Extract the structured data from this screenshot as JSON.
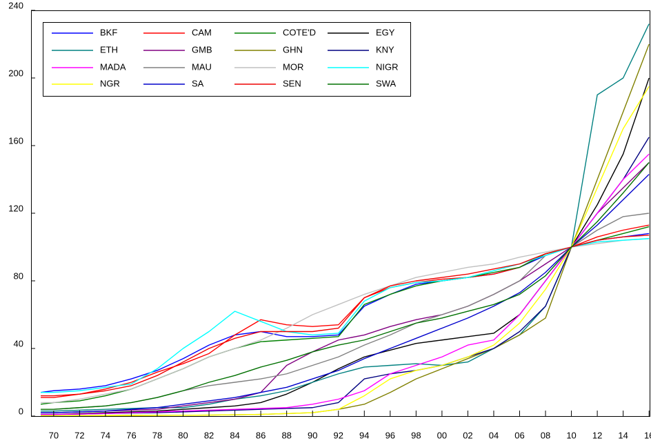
{
  "chart_data": {
    "type": "line",
    "x": [
      1969,
      1970,
      1972,
      1974,
      1976,
      1978,
      1980,
      1982,
      1984,
      1986,
      1988,
      1990,
      1992,
      1994,
      1996,
      1998,
      2000,
      2002,
      2004,
      2006,
      2008,
      2010,
      2012,
      2014,
      2016
    ],
    "xlim": [
      1968.25,
      2016.15
    ],
    "xticks": [
      {
        "value": 1970,
        "label": "70"
      },
      {
        "value": 1972,
        "label": "72"
      },
      {
        "value": 1974,
        "label": "74"
      },
      {
        "value": 1976,
        "label": "76"
      },
      {
        "value": 1978,
        "label": "78"
      },
      {
        "value": 1980,
        "label": "80"
      },
      {
        "value": 1982,
        "label": "82"
      },
      {
        "value": 1984,
        "label": "84"
      },
      {
        "value": 1986,
        "label": "86"
      },
      {
        "value": 1988,
        "label": "88"
      },
      {
        "value": 1990,
        "label": "90"
      },
      {
        "value": 1992,
        "label": "92"
      },
      {
        "value": 1994,
        "label": "94"
      },
      {
        "value": 1996,
        "label": "96"
      },
      {
        "value": 1998,
        "label": "98"
      },
      {
        "value": 2000,
        "label": "00"
      },
      {
        "value": 2002,
        "label": "02"
      },
      {
        "value": 2004,
        "label": "04"
      },
      {
        "value": 2006,
        "label": "06"
      },
      {
        "value": 2008,
        "label": "08"
      },
      {
        "value": 2010,
        "label": "10"
      },
      {
        "value": 2012,
        "label": "12"
      },
      {
        "value": 2014,
        "label": "14"
      },
      {
        "value": 2016,
        "label": "16"
      }
    ],
    "ylim": [
      0,
      240
    ],
    "yticks": [
      0,
      40,
      80,
      120,
      160,
      200,
      240
    ],
    "legend": "upper left",
    "series": [
      {
        "name": "BKF",
        "color": "#0000ff",
        "values": [
          14,
          15,
          16,
          18,
          22,
          27,
          34,
          42,
          48,
          50,
          47,
          47,
          48,
          65,
          72,
          78,
          80,
          82,
          84,
          88,
          95,
          100,
          104,
          106,
          108
        ]
      },
      {
        "name": "CAM",
        "color": "#ff0000",
        "values": [
          11,
          11,
          13,
          16,
          20,
          26,
          31,
          37,
          48,
          57,
          54,
          53,
          54,
          70,
          76,
          79,
          81,
          82,
          84,
          88,
          96,
          100,
          106,
          110,
          113
        ]
      },
      {
        "name": "COTE'D",
        "color": "#008000",
        "values": [
          7,
          8,
          9,
          12,
          16,
          22,
          28,
          35,
          40,
          44,
          45,
          46,
          47,
          66,
          72,
          77,
          80,
          82,
          85,
          88,
          96,
          100,
          104,
          108,
          112
        ]
      },
      {
        "name": "EGY",
        "color": "#000000",
        "values": [
          1,
          1,
          1.5,
          2,
          2.5,
          3,
          4,
          5,
          6,
          8,
          13,
          20,
          28,
          35,
          39,
          43,
          45,
          47,
          49,
          60,
          80,
          100,
          125,
          155,
          200
        ]
      },
      {
        "name": "ETH",
        "color": "#008080",
        "values": [
          3,
          3,
          3.5,
          4,
          4.5,
          5,
          5,
          7,
          10,
          12,
          15,
          20,
          25,
          29,
          30,
          31,
          30,
          32,
          40,
          48,
          65,
          100,
          190,
          200,
          232
        ]
      },
      {
        "name": "GMB",
        "color": "#800080",
        "values": [
          2,
          2,
          2.5,
          3,
          3.5,
          4,
          6,
          8,
          10,
          14,
          30,
          38,
          45,
          48,
          53,
          57,
          60,
          65,
          72,
          80,
          90,
          100,
          120,
          135,
          150
        ]
      },
      {
        "name": "GHN",
        "color": "#808000",
        "values": [
          0.2,
          0.2,
          0.3,
          0.4,
          0.5,
          0.5,
          0.5,
          0.6,
          0.8,
          1,
          1.5,
          2,
          4,
          7,
          14,
          22,
          28,
          34,
          40,
          48,
          58,
          100,
          140,
          180,
          220
        ]
      },
      {
        "name": "KNY",
        "color": "#000080",
        "values": [
          1,
          1,
          1.2,
          1.5,
          1.8,
          2,
          2.5,
          3,
          3.5,
          4,
          4.5,
          5,
          8,
          22,
          25,
          27,
          30,
          35,
          40,
          50,
          65,
          100,
          120,
          140,
          165
        ]
      },
      {
        "name": "MADA",
        "color": "#ff00ff",
        "values": [
          1,
          1,
          1.2,
          1.5,
          2,
          2.5,
          3,
          3.5,
          4,
          4.5,
          5,
          7,
          10,
          15,
          25,
          30,
          35,
          42,
          45,
          60,
          80,
          100,
          120,
          140,
          155
        ]
      },
      {
        "name": "MAU",
        "color": "#808080",
        "values": [
          4,
          4,
          5,
          6,
          8,
          11,
          15,
          18,
          20,
          22,
          25,
          30,
          35,
          42,
          48,
          55,
          60,
          65,
          72,
          80,
          95,
          100,
          110,
          118,
          120
        ]
      },
      {
        "name": "MOR",
        "color": "#c0c0c0",
        "values": [
          8,
          8,
          10,
          13,
          16,
          22,
          28,
          35,
          40,
          45,
          52,
          60,
          66,
          72,
          77,
          82,
          85,
          88,
          90,
          94,
          97,
          100,
          102,
          104,
          105
        ]
      },
      {
        "name": "NIGR",
        "color": "#00ffff",
        "values": [
          14,
          14,
          15,
          17,
          19,
          28,
          40,
          50,
          62,
          56,
          50,
          48,
          49,
          68,
          76,
          79,
          80,
          82,
          86,
          90,
          95,
          100,
          103,
          104,
          105
        ]
      },
      {
        "name": "NGR",
        "color": "#ffff00",
        "values": [
          0.2,
          0.2,
          0.2,
          0.3,
          0.3,
          0.4,
          0.5,
          0.6,
          0.8,
          1,
          1.5,
          2,
          4,
          12,
          22,
          27,
          30,
          35,
          42,
          55,
          75,
          100,
          135,
          170,
          195
        ]
      },
      {
        "name": "SA",
        "color": "#0000cc",
        "values": [
          2,
          2,
          2.5,
          3,
          4,
          5,
          7,
          9,
          11,
          14,
          17,
          22,
          27,
          34,
          40,
          46,
          52,
          58,
          65,
          73,
          85,
          100,
          113,
          128,
          143
        ]
      },
      {
        "name": "SEN",
        "color": "#ee0000",
        "values": [
          12,
          12,
          13,
          15,
          18,
          24,
          32,
          40,
          46,
          50,
          50,
          50,
          52,
          70,
          77,
          80,
          82,
          84,
          87,
          90,
          96,
          100,
          104,
          106,
          107
        ]
      },
      {
        "name": "SWA",
        "color": "#007000",
        "values": [
          4,
          4,
          5,
          6,
          8,
          11,
          15,
          20,
          24,
          29,
          33,
          38,
          42,
          45,
          50,
          55,
          58,
          62,
          66,
          72,
          83,
          100,
          115,
          132,
          150
        ]
      }
    ]
  }
}
